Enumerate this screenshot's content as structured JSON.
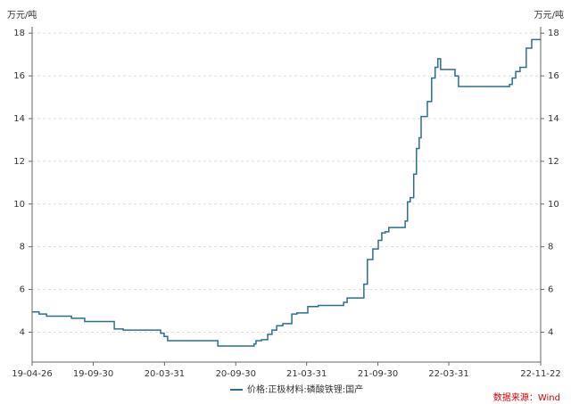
{
  "chart_data": {
    "type": "line",
    "step": true,
    "y_label": "万元/吨",
    "y2_label": "万元/吨",
    "x": [
      "19-04-26",
      "19-05-14",
      "19-06-02",
      "19-08-05",
      "19-09-08",
      "19-11-23",
      "19-12-16",
      "20-03-21",
      "20-03-30",
      "20-04-08",
      "20-04-27",
      "20-08-15",
      "20-11-16",
      "20-11-21",
      "20-12-05",
      "20-12-21",
      "21-01-01",
      "21-01-13",
      "21-01-29",
      "21-02-21",
      "21-03-06",
      "21-04-03",
      "21-04-30",
      "21-07-04",
      "21-07-13",
      "21-08-25",
      "21-09-03",
      "21-09-17",
      "21-10-01",
      "21-10-10",
      "21-10-19",
      "21-10-28",
      "21-12-09",
      "21-12-15",
      "21-12-22",
      "21-12-31",
      "22-01-07",
      "22-01-14",
      "22-01-19",
      "22-02-04",
      "22-02-15",
      "22-02-24",
      "22-03-03",
      "22-03-10",
      "22-04-16",
      "22-04-25",
      "22-05-09",
      "22-09-03",
      "22-09-10",
      "22-09-19",
      "22-09-30",
      "22-10-16",
      "22-10-30",
      "22-11-13",
      "22-11-22"
    ],
    "series": [
      {
        "name": "价格:正极材料:磷酸铁锂:国产",
        "color": "#2a6f8f",
        "values": [
          4.95,
          4.85,
          4.75,
          4.65,
          4.5,
          4.15,
          4.1,
          3.95,
          3.8,
          3.6,
          3.6,
          3.35,
          3.45,
          3.6,
          3.65,
          3.9,
          4.1,
          4.3,
          4.4,
          4.85,
          4.9,
          5.2,
          5.25,
          5.4,
          5.6,
          6.25,
          7.4,
          7.9,
          8.3,
          8.65,
          8.7,
          8.9,
          9.2,
          10.1,
          10.3,
          11.4,
          12.6,
          13.1,
          14.1,
          14.8,
          15.9,
          16.4,
          16.8,
          16.3,
          16.0,
          15.5,
          15.5,
          15.6,
          15.9,
          16.2,
          16.4,
          17.3,
          17.7,
          17.7,
          17.7
        ]
      }
    ],
    "xlim": [
      "19-04-26",
      "22-11-22"
    ],
    "xticks": [
      "19-04-26",
      "19-09-30",
      "20-03-31",
      "20-09-30",
      "21-03-31",
      "21-09-30",
      "22-03-31",
      "22-11-22"
    ],
    "ylim": [
      2.6,
      18.3
    ],
    "yticks": [
      4,
      6,
      8,
      10,
      12,
      14,
      16,
      18
    ],
    "y2lim": [
      2.6,
      18.3
    ],
    "y2ticks": [
      4,
      6,
      8,
      10,
      12,
      14,
      16,
      18
    ],
    "grid": true,
    "legend": "bottom",
    "source": "数据来源：Wind",
    "source_color": "#d40000"
  }
}
